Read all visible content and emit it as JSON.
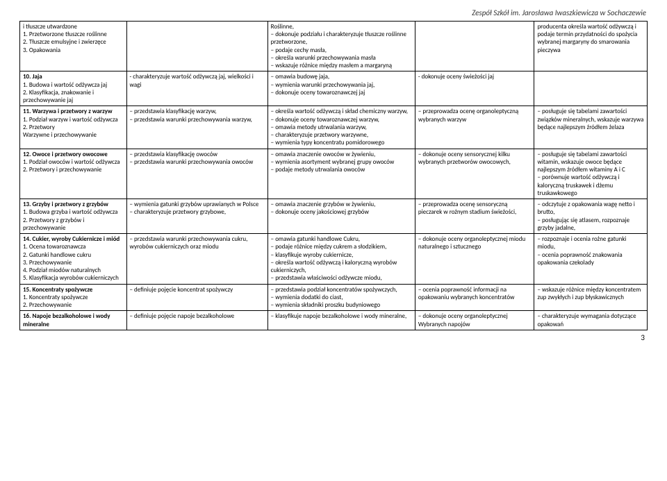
{
  "header": "Zespół Szkół im. Jarosława Iwaszkiewicza w Sochaczewie",
  "page_number": "3",
  "rows": [
    {
      "c1": "i tłuszcze utwardzone\n1. Przetworzone tłuszcze roślinne\n2. Tłuszcze emulsyjne i zwierzęce\n3. Opakowania",
      "c2": "",
      "c3": "Roślinne,\n− dokonuje podziału i charakteryzuje tłuszcze roślinne przetworzone,\n− podaje cechy masła,\n− określa warunki przechowywania masła\n− wskazuje różnice między masłem a margaryną",
      "c4": "",
      "c5": "producenta określa wartość odżywczą i podaje termin przydatności do spożycia wybranej margaryny do smarowania pieczywa"
    },
    {
      "c1_bold": "10. Jaja",
      "c1_rest": "1. Budowa i wartość odżywcza jaj\n2. Klasyfikacja, znakowanie i przechowywanie jaj",
      "c2": "- charakteryzuje wartość odżywczą jaj, wielkości i wagi",
      "c3": "− omawia budowę jaja,\n− wymienia warunki przechowywania jaj,\n− dokonuje oceny towaroznawczej jaj",
      "c4": "- dokonuje oceny świeżości jaj",
      "c5": ""
    },
    {
      "c1_bold": "11. Warzywa i przetwory z warzyw",
      "c1_rest": "1. Podział warzyw i wartość odżywcza\n2. Przetwory\nWarzywne i przechowywanie",
      "c2": "− przedstawia klasyfikację warzyw,\n− przedstawia warunki przechowywania warzyw,",
      "c3": "− określa wartość odżywczą i skład chemiczny warzyw,\n− dokonuje oceny towaroznawczej warzyw,\n− omawia metody utrwalania warzyw,\n− charakteryzuje przetwory warzywne,\n− wymienia typy koncentratu pomidorowego",
      "c4": "− przeprowadza ocenę organoleptyczną wybranych warzyw",
      "c5": "− posługuje się tabelami zawartości związków mineralnych, wskazuje warzywa będące najlepszym źródłem żelaza"
    },
    {
      "c1_bold": "12. Owoce i przetwory owocowe",
      "c1_rest": "1. Podział owoców i wartość odżywcza\n2. Przetwory i przechowywanie",
      "c2": "− przedstawia klasyfikację owoców\n− przedstawia warunki przechowywania owoców",
      "c3": "− omawia znaczenie owoców w żywieniu,\n− wymienia asortyment wybranej grupy owoców\n− podaje metody utrwalania owoców",
      "c4": "− dokonuje oceny sensorycznej kilku wybranych przetworów owocowych,",
      "c5": "− posługuje się tabelami zawartości witamin, wskazuje owoce będące najlepszym źródłem witaminy A i C\n− porównuje wartość odżywczą i kaloryczną truskawek i dżemu truskawkowego"
    },
    {
      "c1_bold": "13. Grzyby i przetwory z grzybów",
      "c1_rest": "1. Budowa grzyba i wartość odżywcza\n2. Przetwory z grzybów i przechowywanie",
      "c2": "− wymienia gatunki grzybów uprawianych w Polsce\n− charakteryzuje przetwory grzybowe,",
      "c3": "− omawia znaczenie grzybów w żywieniu,\n− dokonuje oceny jakościowej grzybów",
      "c4": "− przeprowadza ocenę sensoryczną pieczarek w rożnym stadium świeżości,",
      "c5": "− odczytuje z opakowania wagę netto i brutto,\n− posługując się atlasem, rozpoznaje grzyby jadalne,"
    },
    {
      "c1_bold": "14. Cukier, wyroby Cukiernicze i miód",
      "c1_rest": "1. Ocena towaroznawcza\n2. Gatunki handlowe cukru\n3. Przechowywanie\n4. Podział miodów naturalnych\n5. Klasyfikacja wyrobów cukierniczych",
      "c2": "− przedstawia warunki przechowywania cukru, wyrobów cukierniczych oraz miodu",
      "c3": "− omawia gatunki handlowe Cukru,\n− podaje różnice między cukrem a słodzikiem,\n− klasyfikuje wyroby cukiernicze,\n− określa wartość odżywczą i kaloryczną wyrobów cukierniczych,\n− przedstawia właściwości odżywcze miodu,",
      "c4": "− dokonuje oceny organoleptycznej miodu naturalnego i sztucznego",
      "c5": "− rozpoznaje i ocenia rożne gatunki miodu,\n− ocenia poprawność znakowania opakowania czekolady"
    },
    {
      "c1_bold": "15. Koncentraty spożywcze",
      "c1_rest": "1. Koncentraty spożywcze\n2. Przechowywanie",
      "c2": "− definiuje pojęcie koncentrat spożywczy",
      "c3": "− przedstawia podział koncentratów spożywczych,\n− wymienia dodatki do ciast,\n− wymienia składniki proszku budyniowego",
      "c4": "− ocenia poprawność informacji na opakowaniu wybranych koncentratów",
      "c5": "− wskazuje różnice między koncentratem zup zwykłych i zup błyskawicznych"
    },
    {
      "c1_bold": "16. Napoje bezalkoholowe i wody mineralne",
      "c1_rest": "",
      "c2": "− definiuje pojęcie napoje bezalkoholowe",
      "c3": "− klasyfikuje napoje bezalkoholowe i wody mineralne,",
      "c4": "− dokonuje oceny organoleptycznej Wybranych napojów",
      "c5": "− charakteryzuje wymagania dotyczące opakowań"
    }
  ]
}
